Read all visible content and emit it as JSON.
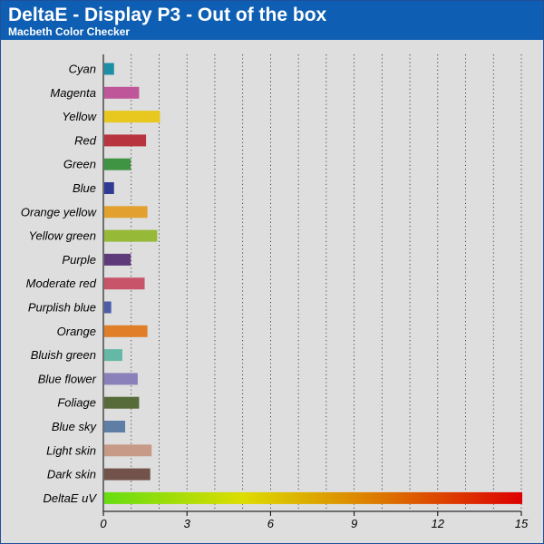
{
  "header": {
    "title": "DeltaE - Display P3 - Out of the box",
    "subtitle": "Macbeth Color Checker"
  },
  "chart_data": {
    "type": "bar",
    "orientation": "horizontal",
    "categories": [
      "Cyan",
      "Magenta",
      "Yellow",
      "Red",
      "Green",
      "Blue",
      "Orange yellow",
      "Yellow green",
      "Purple",
      "Moderate red",
      "Purplish blue",
      "Orange",
      "Bluish green",
      "Blue flower",
      "Foliage",
      "Blue sky",
      "Light skin",
      "Dark skin"
    ],
    "values": [
      0.35,
      1.25,
      2.0,
      1.5,
      0.95,
      0.35,
      1.55,
      1.9,
      0.95,
      1.45,
      0.25,
      1.55,
      0.65,
      1.2,
      1.25,
      0.75,
      1.7,
      1.65
    ],
    "bar_colors": [
      "#1a8fa6",
      "#c0569a",
      "#e8c81e",
      "#b8343e",
      "#3e9442",
      "#2e3a94",
      "#e2a12e",
      "#96ba38",
      "#5e3a7a",
      "#c8546a",
      "#4e5ca8",
      "#e07e2a",
      "#66b8a6",
      "#8a80ba",
      "#566a3a",
      "#5e7ea6",
      "#c69a86",
      "#72524a"
    ],
    "scale_bar": {
      "label": "DeltaE uV",
      "value": 15,
      "gradient": [
        "#66dd11",
        "#dddd00",
        "#dd7700",
        "#dd0000"
      ]
    },
    "xlim": [
      0,
      15
    ],
    "xticks": [
      "0",
      "3",
      "6",
      "9",
      "12",
      "15"
    ],
    "grid": "vertical dotted",
    "title": "DeltaE - Display P3 - Out of the box",
    "subtitle": "Macbeth Color Checker"
  }
}
